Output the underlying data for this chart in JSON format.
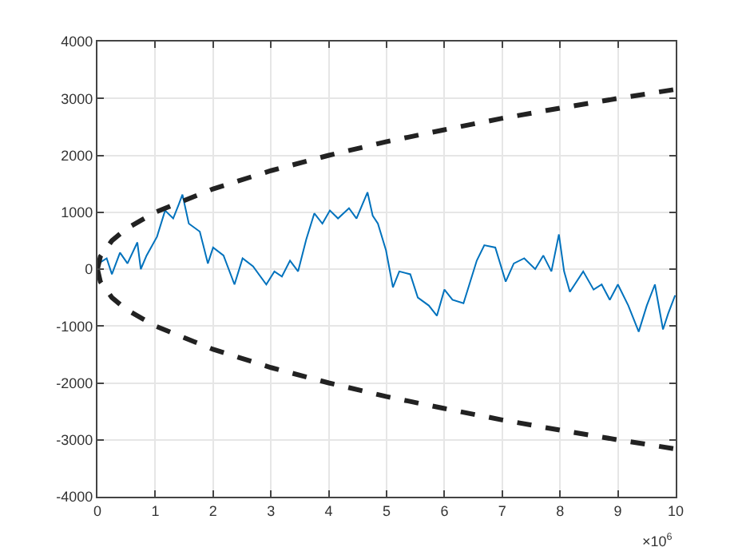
{
  "chart_data": {
    "type": "line",
    "xlim": [
      0,
      10
    ],
    "ylim": [
      -4000,
      4000
    ],
    "xticks": [
      0,
      1,
      2,
      3,
      4,
      5,
      6,
      7,
      8,
      9,
      10
    ],
    "yticks": [
      -4000,
      -3000,
      -2000,
      -1000,
      0,
      1000,
      2000,
      3000,
      4000
    ],
    "grid": true,
    "annotations": [
      "×10$^{6}$"
    ],
    "series": [
      {
        "color": "#0072bd",
        "line_style": "solid",
        "x": [
          0,
          0.02,
          0.16,
          0.25,
          0.39,
          0.52,
          0.69,
          0.75,
          0.85,
          1.03,
          1.17,
          1.31,
          1.4,
          1.47,
          1.58,
          1.77,
          1.91,
          2.0,
          2.18,
          2.37,
          2.51,
          2.69,
          2.92,
          3.06,
          3.19,
          3.33,
          3.47,
          3.61,
          3.75,
          3.89,
          4.02,
          4.16,
          4.35,
          4.48,
          4.67,
          4.76,
          4.85,
          4.99,
          5.11,
          5.22,
          5.41,
          5.54,
          5.73,
          5.87,
          6.0,
          6.14,
          6.33,
          6.56,
          6.69,
          6.88,
          7.06,
          7.2,
          7.38,
          7.57,
          7.71,
          7.85,
          7.98,
          8.07,
          8.17,
          8.4,
          8.58,
          8.72,
          8.86,
          9.0,
          9.18,
          9.36,
          9.5,
          9.64,
          9.78,
          9.87,
          9.99
        ],
        "values": [
          0,
          100,
          190,
          -90,
          290,
          100,
          470,
          0,
          240,
          570,
          1030,
          890,
          1120,
          1310,
          800,
          660,
          100,
          380,
          240,
          -270,
          190,
          50,
          -270,
          -40,
          -130,
          150,
          -40,
          520,
          980,
          800,
          1030,
          890,
          1070,
          890,
          1350,
          940,
          800,
          330,
          -320,
          -40,
          -90,
          -500,
          -640,
          -820,
          -360,
          -540,
          -600,
          150,
          420,
          380,
          -220,
          100,
          190,
          0,
          240,
          -40,
          610,
          -40,
          -400,
          -40,
          -360,
          -270,
          -540,
          -270,
          -640,
          -1100,
          -640,
          -270,
          -1060,
          -780,
          -460
        ]
      },
      {
        "color": "#222222",
        "line_style": "dashed",
        "x": [
          0,
          0.05,
          0.25,
          0.5,
          1,
          2,
          3,
          4,
          5,
          6,
          7,
          8,
          9,
          10
        ],
        "values": [
          0,
          220,
          500,
          710,
          1000,
          1410,
          1730,
          2000,
          2240,
          2450,
          2650,
          2830,
          3000,
          3160
        ]
      },
      {
        "color": "#222222",
        "line_style": "dashed",
        "x": [
          0,
          0.05,
          0.25,
          0.5,
          1,
          2,
          3,
          4,
          5,
          6,
          7,
          8,
          9,
          10
        ],
        "values": [
          0,
          -220,
          -500,
          -710,
          -1000,
          -1410,
          -1730,
          -2000,
          -2240,
          -2450,
          -2650,
          -2830,
          -3000,
          -3160
        ]
      }
    ]
  }
}
